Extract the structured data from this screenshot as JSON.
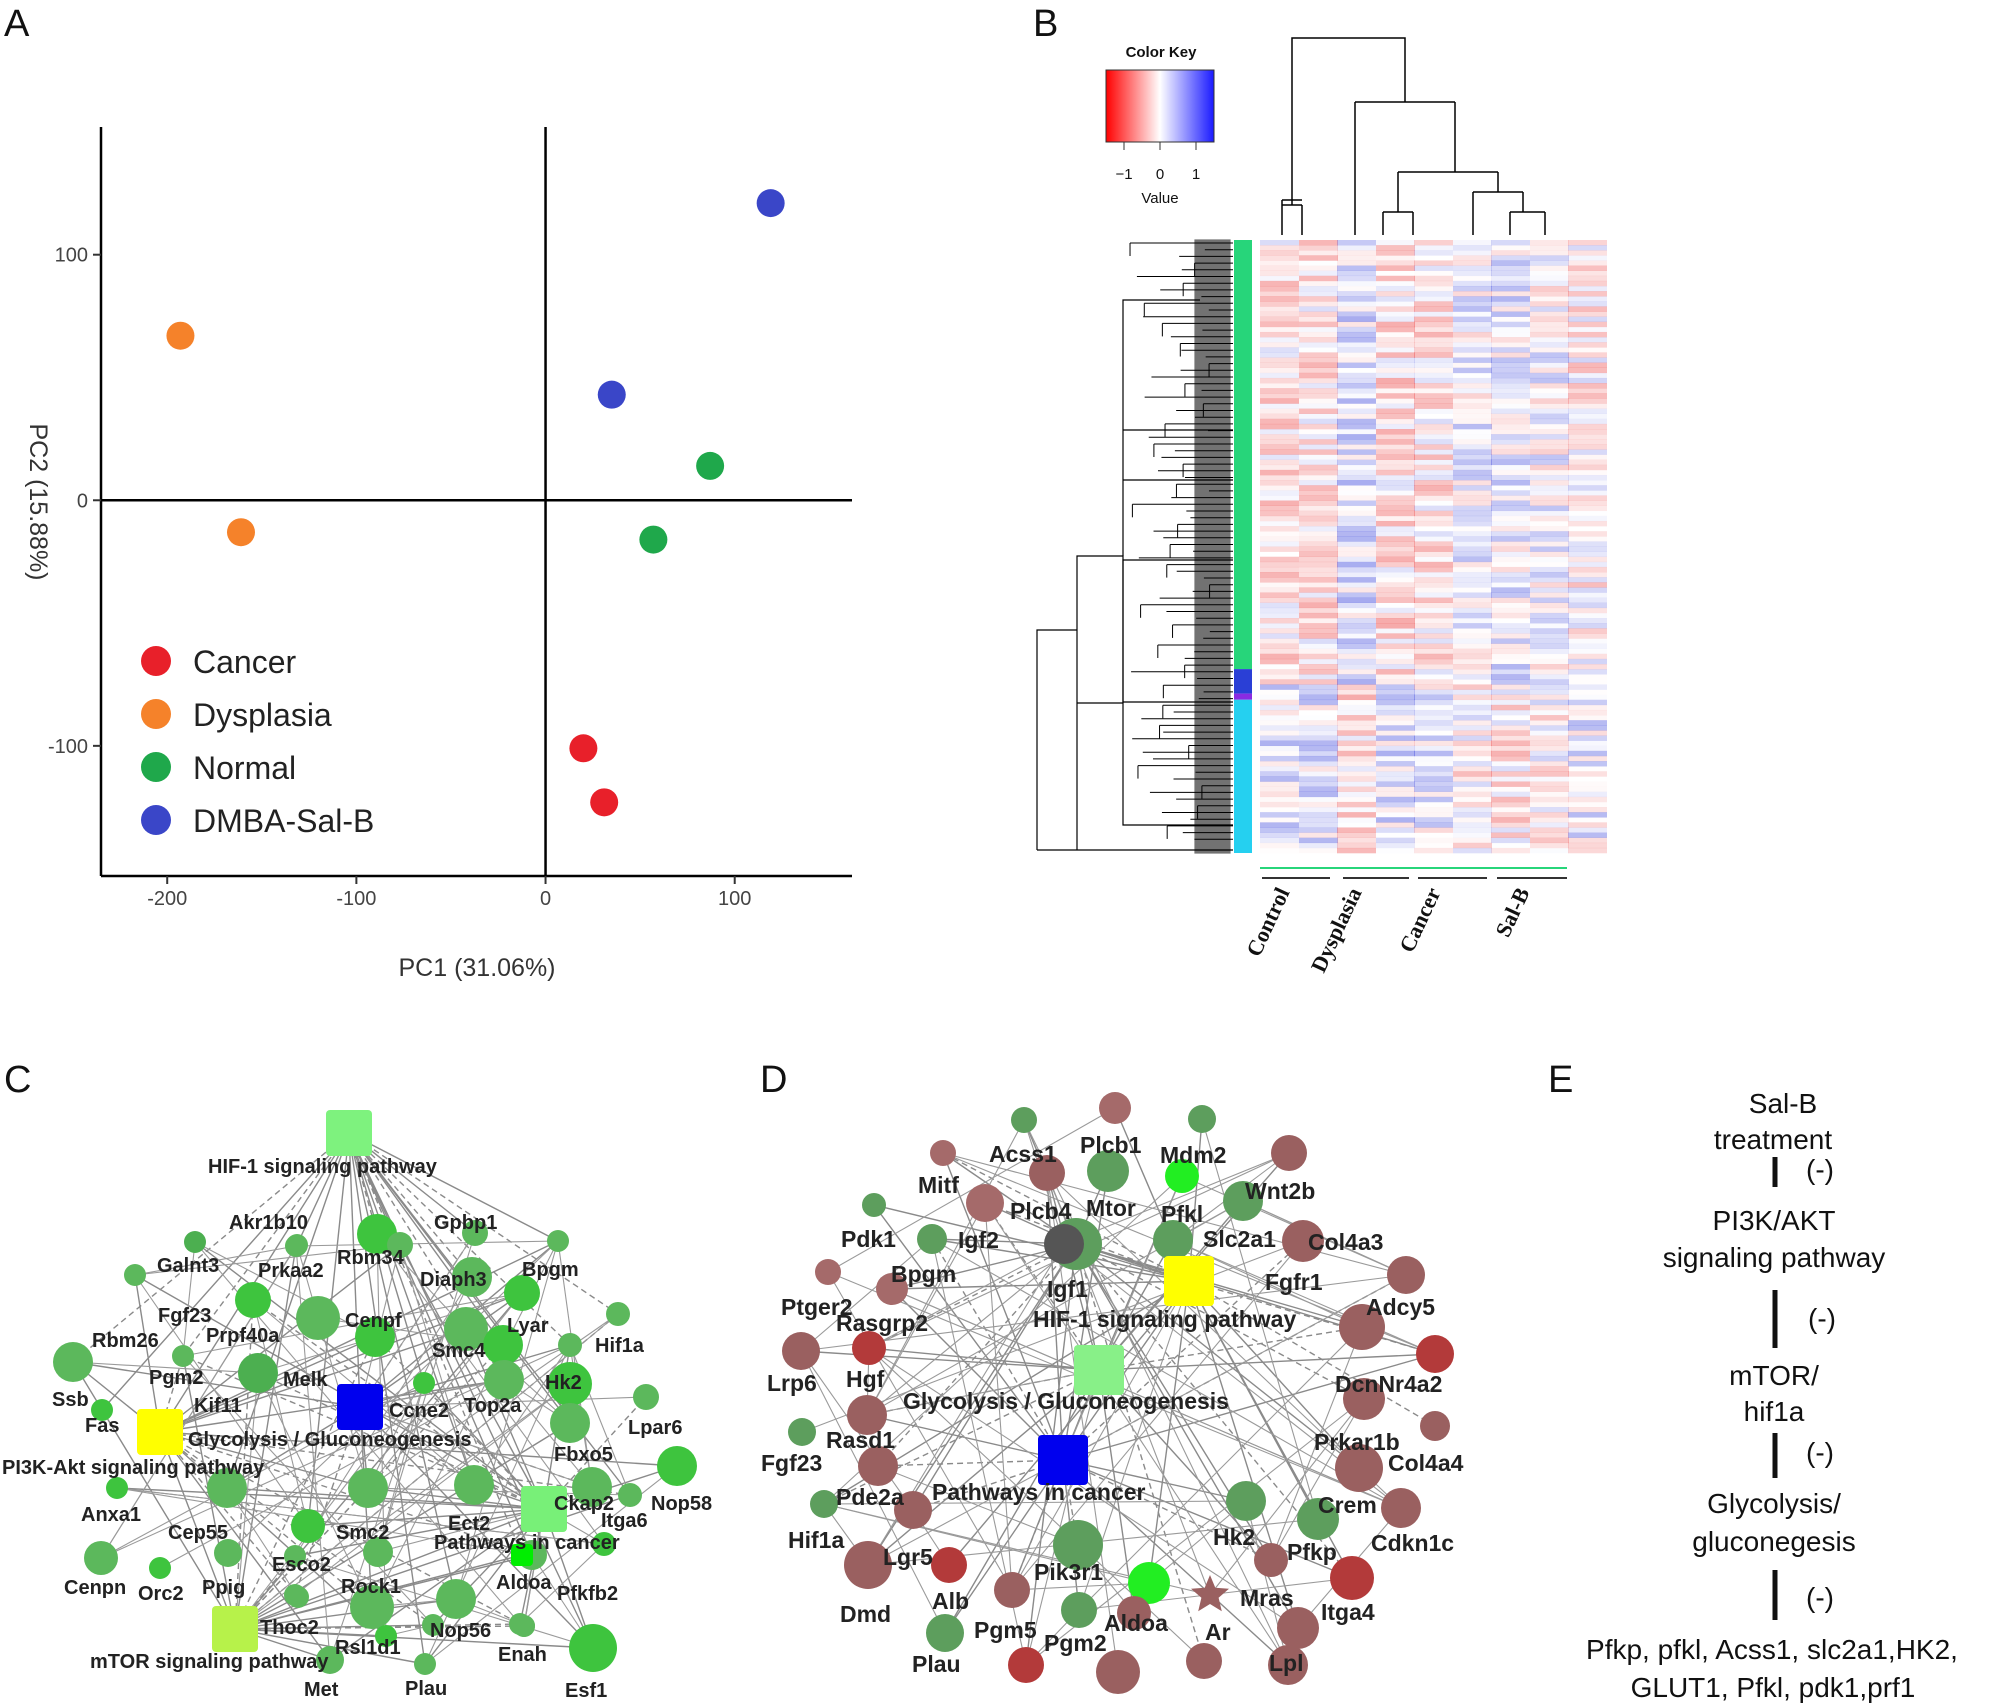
{
  "panel_labels": {
    "a": "A",
    "b": "B",
    "c": "C",
    "d": "D",
    "e": "E"
  },
  "chart_data": [
    {
      "type": "scatter",
      "panel": "A",
      "xlabel": "PC1 (31.06%)",
      "ylabel": "PC2 (15.88%)",
      "xlim": [
        -235,
        162
      ],
      "ylim": [
        -153,
        152
      ],
      "xticks": [
        "-200",
        "-100",
        "0",
        "100"
      ],
      "yticks": [
        "100",
        "0",
        "-100"
      ],
      "series": [
        {
          "name": "Cancer",
          "color": "#e8202a",
          "points": [
            [
              20,
              -101
            ],
            [
              31,
              -123
            ]
          ]
        },
        {
          "name": "Dysplasia",
          "color": "#f5822a",
          "points": [
            [
              -193,
              67
            ],
            [
              -161,
              -13
            ]
          ]
        },
        {
          "name": "Normal",
          "color": "#1fa84b",
          "points": [
            [
              87,
              14
            ],
            [
              57,
              -16
            ]
          ]
        },
        {
          "name": "DMBA-Sal-B",
          "color": "#3a46c8",
          "points": [
            [
              119,
              121
            ],
            [
              35,
              43
            ]
          ]
        }
      ]
    },
    {
      "type": "heatmap",
      "panel": "B",
      "title": "Color Key",
      "key_ticks": [
        "−1",
        "0",
        "1"
      ],
      "key_label": "Value",
      "key_range": [
        -1.5,
        1.5
      ],
      "groups": [
        "Control",
        "Dysplasia",
        "Cancer",
        "Sal-B"
      ],
      "module_colors": [
        "#27d57a",
        "#2a3fd6",
        "#8a2be2",
        "#25d0f0"
      ],
      "module_fractions": [
        0.7,
        0.04,
        0.01,
        0.25
      ]
    }
  ],
  "network_c": {
    "pathways": [
      "HIF-1 signaling pathway",
      "Glycolysis / Gluconeogenesis",
      "PI3K-Akt signaling pathway",
      "Pathways in cancer",
      "mTOR signaling pathway"
    ],
    "genes": [
      "Akr1b10",
      "Gpbp1",
      "Galnt3",
      "Prkaa2",
      "Rbm34",
      "Diaph3",
      "Bpgm",
      "Fgf23",
      "Lyar",
      "Rbm26",
      "Prpf40a",
      "Cenpf",
      "Smc4",
      "Hif1a",
      "Pgm2",
      "Melk",
      "Hk2",
      "Ssb",
      "Kif11",
      "Ccne2",
      "Top2a",
      "Lpar6",
      "Fas",
      "Fbxo5",
      "Anxa1",
      "Cep55",
      "Ckap2",
      "Nop58",
      "Itga6",
      "Smc2",
      "Ect2",
      "Cenpn",
      "Orc2",
      "Ppig",
      "Esco2",
      "Aldoa",
      "Pfkfb2",
      "Rock1",
      "Thoc2",
      "Nop56",
      "Rsl1d1",
      "Enah",
      "Met",
      "Plau",
      "Esf1"
    ]
  },
  "network_d": {
    "pathways": [
      "HIF-1 signaling pathway",
      "Glycolysis / Gluconeogenesis",
      "Pathways in cancer"
    ],
    "genes": [
      "Acss1",
      "Plcb1",
      "Mdm2",
      "Mitf",
      "Wnt2b",
      "Plcb4",
      "Mtor",
      "Pfkl",
      "Pdk1",
      "Igf2",
      "Slc2a1",
      "Col4a3",
      "Bpgm",
      "Igf1",
      "Fgfr1",
      "Ptger2",
      "Rasgrp2",
      "Adcy5",
      "Lrp6",
      "Hgf",
      "DcnNr4a2",
      "Rasd1",
      "Prkar1b",
      "Fgf23",
      "Col4a4",
      "Pde2a",
      "Crem",
      "Hif1a",
      "Hk2",
      "Cdkn1c",
      "Lgr5",
      "Pfkp",
      "Pik3r1",
      "Dmd",
      "Alb",
      "Mras",
      "Itga4",
      "Pgm5",
      "Aldoa",
      "Ar",
      "Pgm2",
      "Plau",
      "Lpl"
    ]
  },
  "flow_e": {
    "steps": [
      {
        "lines": [
          "Sal-B",
          "treatment"
        ]
      },
      {
        "lines": [
          "PI3K/AKT",
          "signaling pathway"
        ]
      },
      {
        "lines": [
          "mTOR/",
          "hif1a"
        ]
      },
      {
        "lines": [
          "Glycolysis/",
          "gluconegesis"
        ]
      },
      {
        "lines": [
          "Pfkp, pfkl, Acss1, slc2a1,HK2,",
          "GLUT1, Pfkl, pdk1,prf1"
        ]
      }
    ],
    "inhibit_label": "(-)"
  }
}
